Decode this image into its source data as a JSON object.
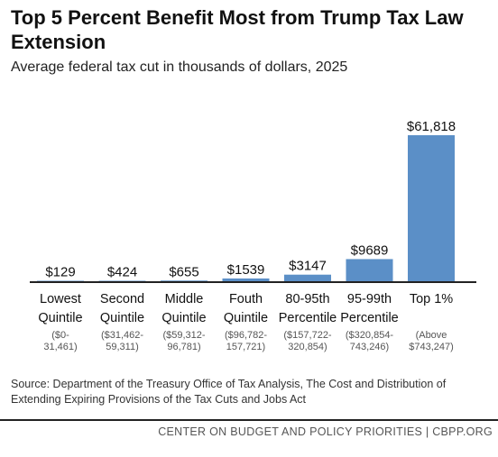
{
  "title": "Top 5 Percent Benefit Most from Trump Tax Law Extension",
  "subtitle": "Average federal tax cut in thousands of dollars, 2025",
  "source": "Source: Department of the Treasury Office of Tax Analysis, The Cost and Distribution of Extending Expiring Provisions of the Tax Cuts and Jobs Act",
  "footer": "CENTER ON BUDGET AND POLICY PRIORITIES | CBPP.ORG",
  "colors": {
    "bar": "#5b8fc7",
    "axis": "#222222"
  },
  "chart_data": {
    "type": "bar",
    "categories": [
      {
        "name": [
          "Lowest",
          "Quintile"
        ],
        "range": [
          "($0-",
          "31,461)"
        ]
      },
      {
        "name": [
          "Second",
          "Quintile"
        ],
        "range": [
          "($31,462-",
          "59,311)"
        ]
      },
      {
        "name": [
          "Middle",
          "Quintile"
        ],
        "range": [
          "($59,312-",
          "96,781)"
        ]
      },
      {
        "name": [
          "Fouth",
          "Quintile"
        ],
        "range": [
          "($96,782-",
          "157,721)"
        ]
      },
      {
        "name": [
          "80-95th",
          "Percentile"
        ],
        "range": [
          "($157,722-",
          "320,854)"
        ]
      },
      {
        "name": [
          "95-99th",
          "Percentile"
        ],
        "range": [
          "($320,854-",
          "743,246)"
        ]
      },
      {
        "name": [
          "Top 1%"
        ],
        "range": [
          "(Above",
          "$743,247)"
        ]
      }
    ],
    "values": [
      129,
      424,
      655,
      1539,
      3147,
      9689,
      61818
    ],
    "value_labels": [
      "$129",
      "$424",
      "$655",
      "$1539",
      "$3147",
      "$9689",
      "$61,818"
    ],
    "ylim": [
      0,
      61818
    ],
    "grid": false,
    "legend": "none"
  }
}
